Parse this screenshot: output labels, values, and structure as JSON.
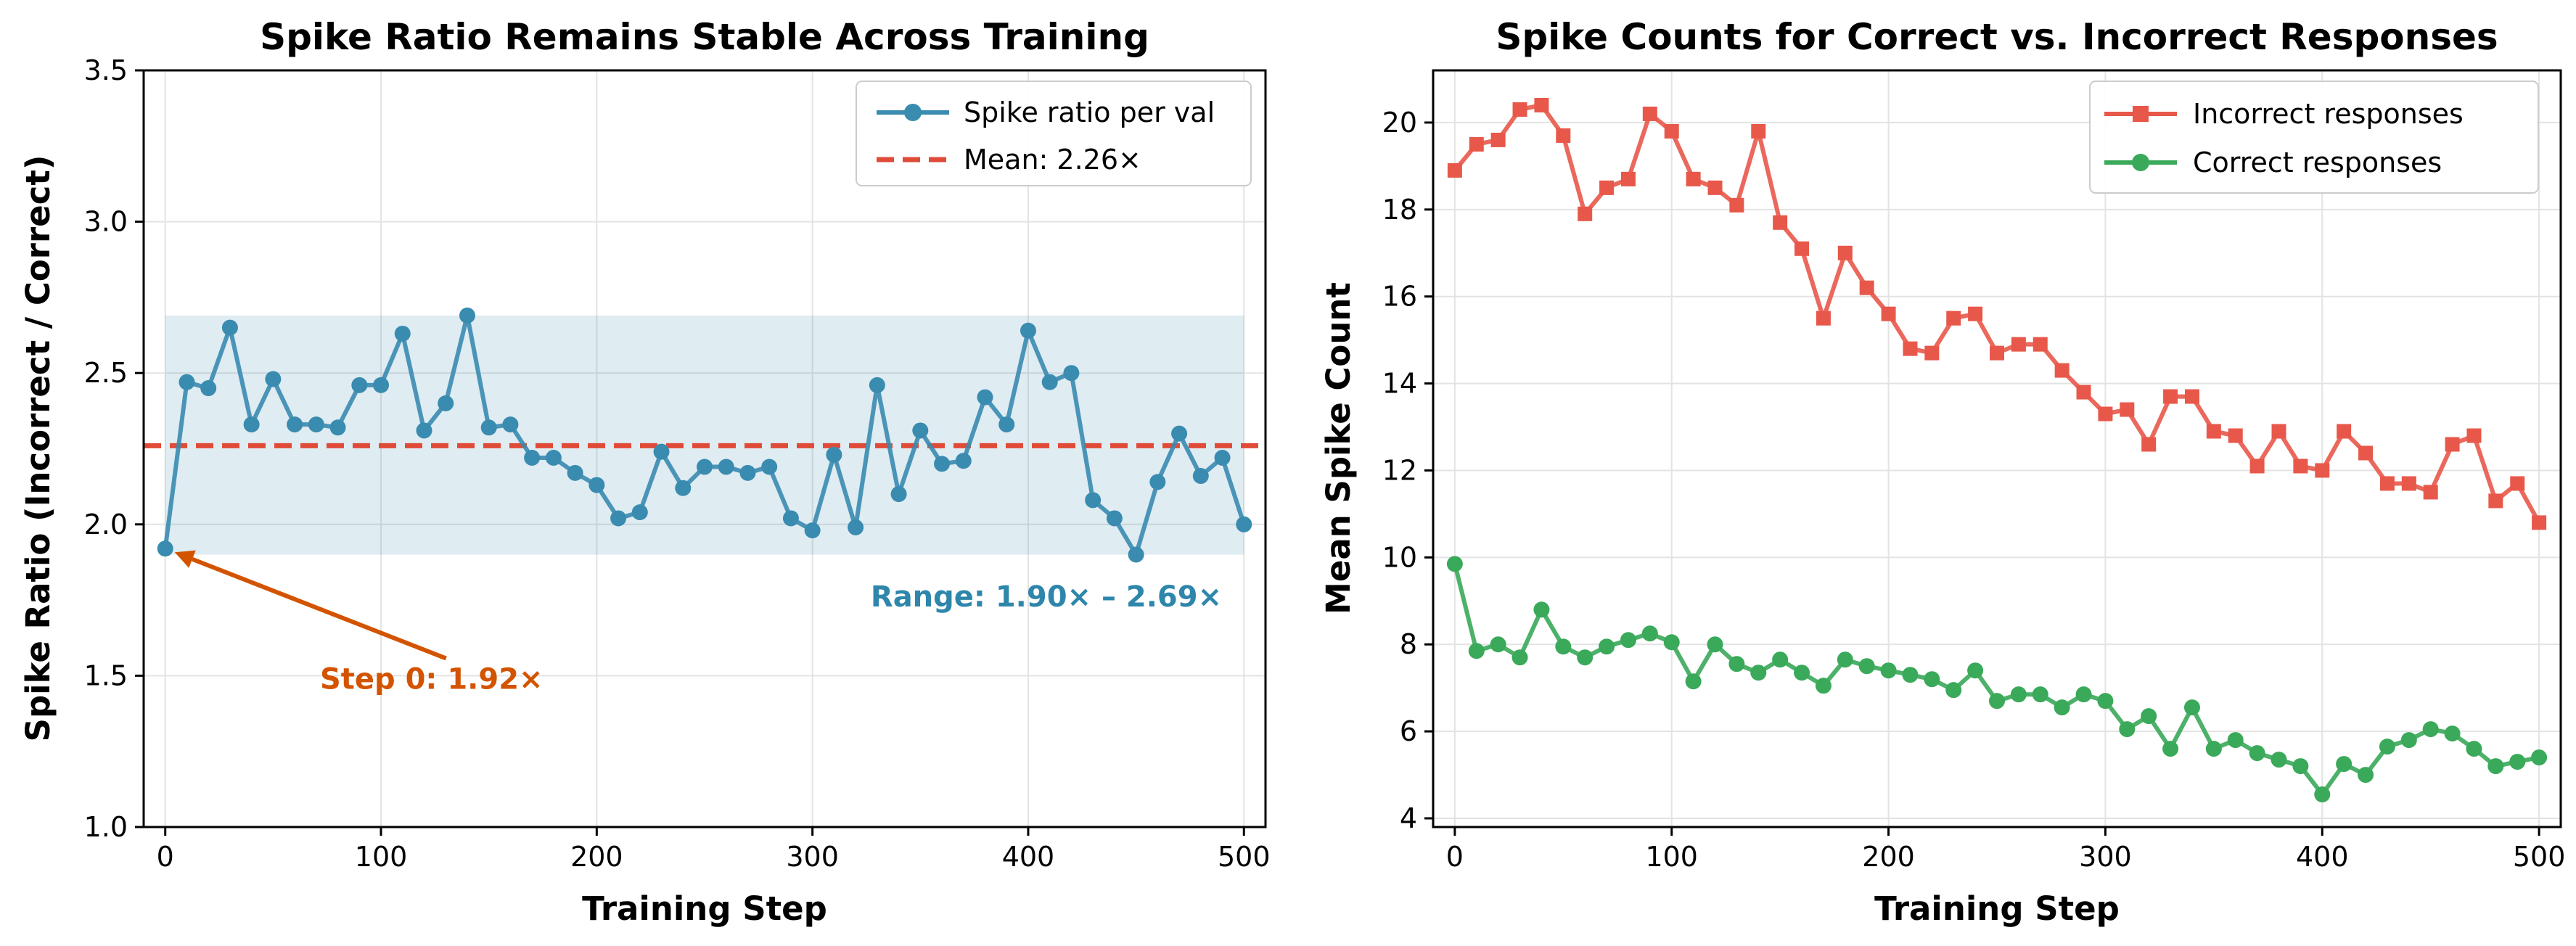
{
  "colors": {
    "ratio_line": "#3a8bb0",
    "mean_line": "#e04b38",
    "range_band": "#3a8bb0",
    "range_text": "#2e86ab",
    "step0_annot": "#d35400",
    "incorrect": "#e8584a",
    "correct": "#3aa95a"
  },
  "chart_data": [
    {
      "type": "line",
      "title": "Spike Ratio Remains Stable Across Training",
      "xlabel": "Training Step",
      "ylabel": "Spike Ratio (Incorrect / Correct)",
      "xlim": [
        -10,
        510
      ],
      "ylim": [
        1.0,
        3.5
      ],
      "xticks": [
        0,
        100,
        200,
        300,
        400,
        500
      ],
      "yticks": [
        1.0,
        1.5,
        2.0,
        2.5,
        3.0,
        3.5
      ],
      "ytick_labels": [
        "1.0",
        "1.5",
        "2.0",
        "2.5",
        "3.0",
        "3.5"
      ],
      "grid": true,
      "legend": "top-right",
      "series": [
        {
          "name": "Spike ratio per val",
          "marker": "circle",
          "x": [
            0,
            10,
            20,
            30,
            40,
            50,
            60,
            70,
            80,
            90,
            100,
            110,
            120,
            130,
            140,
            150,
            160,
            170,
            180,
            190,
            200,
            210,
            220,
            230,
            240,
            250,
            260,
            270,
            280,
            290,
            300,
            310,
            320,
            330,
            340,
            350,
            360,
            370,
            380,
            390,
            400,
            410,
            420,
            430,
            440,
            450,
            460,
            470,
            480,
            490,
            500
          ],
          "y": [
            1.92,
            2.47,
            2.45,
            2.65,
            2.33,
            2.48,
            2.33,
            2.33,
            2.32,
            2.46,
            2.46,
            2.63,
            2.31,
            2.4,
            2.69,
            2.32,
            2.33,
            2.22,
            2.22,
            2.17,
            2.13,
            2.02,
            2.04,
            2.24,
            2.12,
            2.19,
            2.19,
            2.17,
            2.19,
            2.02,
            1.98,
            2.23,
            1.99,
            2.46,
            2.1,
            2.31,
            2.2,
            2.21,
            2.42,
            2.33,
            2.64,
            2.47,
            2.5,
            2.08,
            2.02,
            1.9,
            2.14,
            2.3,
            2.16,
            2.22,
            2.0
          ]
        }
      ],
      "mean": {
        "label": "Mean: 2.26×",
        "value": 2.26
      },
      "range_band": {
        "min": 1.9,
        "max": 2.69
      },
      "annotations": {
        "range_text": "Range: 1.90× – 2.69×",
        "step0_text": "Step 0: 1.92×",
        "step0_point": {
          "x": 0,
          "y": 1.92
        },
        "step0_text_at": {
          "x": 110,
          "y": 1.49
        }
      }
    },
    {
      "type": "line",
      "title": "Spike Counts for Correct vs. Incorrect Responses",
      "xlabel": "Training Step",
      "ylabel": "Mean Spike Count",
      "xlim": [
        -10,
        510
      ],
      "ylim": [
        3.8,
        21.2
      ],
      "xticks": [
        0,
        100,
        200,
        300,
        400,
        500
      ],
      "yticks": [
        4,
        6,
        8,
        10,
        12,
        14,
        16,
        18,
        20
      ],
      "ytick_labels": [
        "4",
        "6",
        "8",
        "10",
        "12",
        "14",
        "16",
        "18",
        "20"
      ],
      "grid": true,
      "legend": "top-right",
      "series": [
        {
          "name": "Incorrect responses",
          "marker": "square",
          "x": [
            0,
            10,
            20,
            30,
            40,
            50,
            60,
            70,
            80,
            90,
            100,
            110,
            120,
            130,
            140,
            150,
            160,
            170,
            180,
            190,
            200,
            210,
            220,
            230,
            240,
            250,
            260,
            270,
            280,
            290,
            300,
            310,
            320,
            330,
            340,
            350,
            360,
            370,
            380,
            390,
            400,
            410,
            420,
            430,
            440,
            450,
            460,
            470,
            480,
            490,
            500
          ],
          "y": [
            18.9,
            19.5,
            19.6,
            20.3,
            20.4,
            19.7,
            17.9,
            18.5,
            18.7,
            20.2,
            19.8,
            18.7,
            18.5,
            18.1,
            19.8,
            17.7,
            17.1,
            15.5,
            17.0,
            16.2,
            15.6,
            14.8,
            14.7,
            15.5,
            15.6,
            14.7,
            14.9,
            14.9,
            14.3,
            13.8,
            13.3,
            13.4,
            12.6,
            13.7,
            13.7,
            12.9,
            12.8,
            12.1,
            12.9,
            12.1,
            12.0,
            12.9,
            12.4,
            11.7,
            11.7,
            11.5,
            12.6,
            12.8,
            11.3,
            11.7,
            10.8
          ]
        },
        {
          "name": "Correct responses",
          "marker": "circle",
          "x": [
            0,
            10,
            20,
            30,
            40,
            50,
            60,
            70,
            80,
            90,
            100,
            110,
            120,
            130,
            140,
            150,
            160,
            170,
            180,
            190,
            200,
            210,
            220,
            230,
            240,
            250,
            260,
            270,
            280,
            290,
            300,
            310,
            320,
            330,
            340,
            350,
            360,
            370,
            380,
            390,
            400,
            410,
            420,
            430,
            440,
            450,
            460,
            470,
            480,
            490,
            500
          ],
          "y": [
            9.85,
            7.85,
            8.0,
            7.7,
            8.8,
            7.95,
            7.7,
            7.95,
            8.1,
            8.25,
            8.05,
            7.15,
            8.0,
            7.55,
            7.35,
            7.65,
            7.35,
            7.05,
            7.65,
            7.5,
            7.4,
            7.3,
            7.2,
            6.95,
            7.4,
            6.7,
            6.85,
            6.85,
            6.55,
            6.85,
            6.7,
            6.05,
            6.35,
            5.6,
            6.55,
            5.6,
            5.8,
            5.5,
            5.35,
            5.2,
            4.55,
            5.25,
            5.0,
            5.65,
            5.8,
            6.05,
            5.95,
            5.6,
            5.2,
            5.3,
            5.4
          ]
        }
      ]
    }
  ]
}
